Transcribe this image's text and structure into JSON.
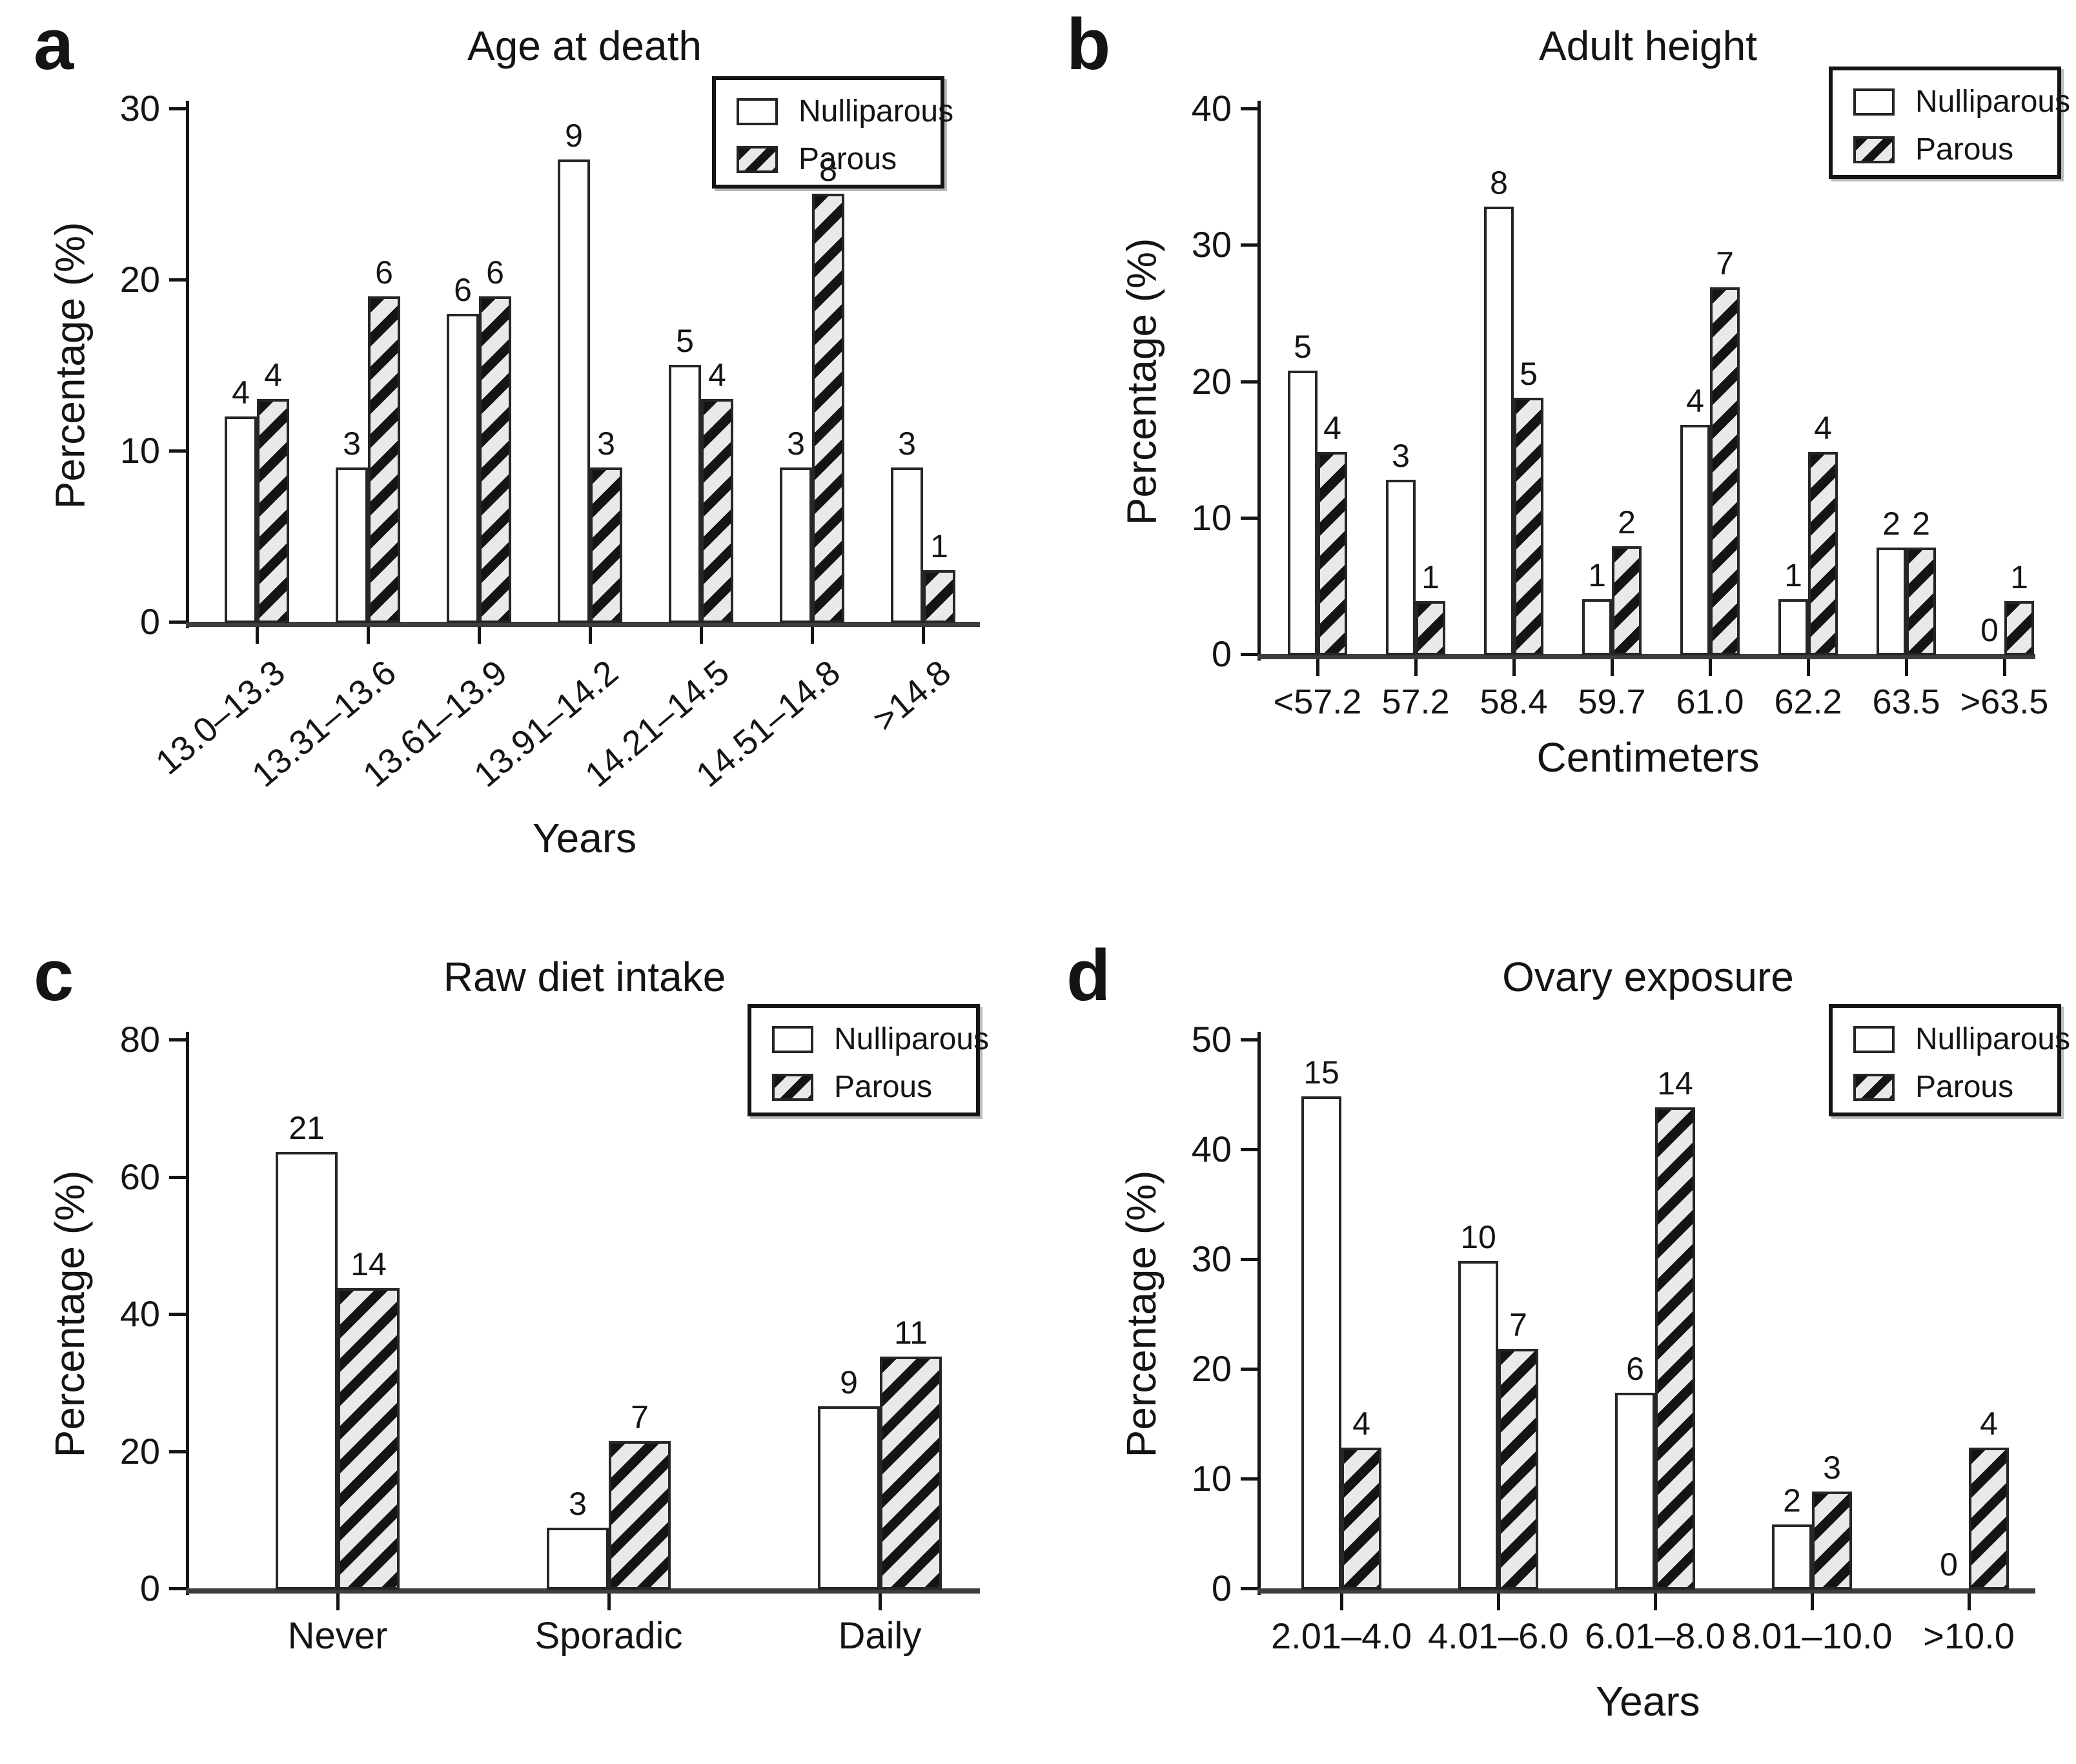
{
  "figure_background": "#ffffff",
  "colors": {
    "text": "#141414",
    "axis_line": "#141414",
    "baseline": "#3d3d3d",
    "open_bar_fill": "#ffffff",
    "hatched_bar_fill": "#e9e9e9",
    "hatch_stripe": "#141414",
    "bar_border": "#262626"
  },
  "legend": {
    "items": [
      {
        "label": "Nulliparous",
        "swatch": "open-white-square"
      },
      {
        "label": "Parous",
        "swatch": "black-diagonal-hatched-square"
      }
    ]
  },
  "chart_data": [
    {
      "panel": "a",
      "letter": "a",
      "type": "bar",
      "title": "Age at death",
      "xlabel": "Years",
      "ylabel": "Percentage (%)",
      "ylim": [
        0,
        30
      ],
      "yticks": [
        0,
        10,
        20,
        30
      ],
      "grid": false,
      "legend_position": "top-right",
      "x_tick_rotation_deg": -40,
      "categories": [
        "13.0–13.3",
        "13.31–13.6",
        "13.61–13.9",
        "13.91–14.2",
        "14.21–14.5",
        "14.51–14.8",
        ">14.8"
      ],
      "series": [
        {
          "name": "Nulliparous",
          "style": "open",
          "values": [
            12,
            9,
            18,
            27,
            15,
            9,
            9
          ],
          "counts": [
            4,
            3,
            6,
            9,
            5,
            3,
            3
          ]
        },
        {
          "name": "Parous",
          "style": "hatched",
          "values": [
            13,
            19,
            19,
            9,
            13,
            25,
            3
          ],
          "counts": [
            4,
            6,
            6,
            3,
            4,
            8,
            1
          ]
        }
      ]
    },
    {
      "panel": "b",
      "letter": "b",
      "type": "bar",
      "title": "Adult height",
      "xlabel": "Centimeters",
      "ylabel": "Percentage (%)",
      "ylim": [
        0,
        40
      ],
      "yticks": [
        0,
        10,
        20,
        30,
        40
      ],
      "grid": false,
      "legend_position": "top-right",
      "x_tick_rotation_deg": 0,
      "categories": [
        "<57.2",
        "57.2",
        "58.4",
        "59.7",
        "61.0",
        "62.2",
        "63.5",
        ">63.5"
      ],
      "series": [
        {
          "name": "Nulliparous",
          "style": "open",
          "values": [
            20.8,
            12.8,
            32.8,
            4,
            16.8,
            4,
            7.8,
            0
          ],
          "counts": [
            5,
            3,
            8,
            1,
            4,
            1,
            2,
            0
          ]
        },
        {
          "name": "Parous",
          "style": "hatched",
          "values": [
            14.8,
            3.9,
            18.8,
            7.9,
            26.9,
            14.8,
            7.8,
            3.9
          ],
          "counts": [
            4,
            1,
            5,
            2,
            7,
            4,
            2,
            1
          ]
        }
      ]
    },
    {
      "panel": "c",
      "letter": "c",
      "type": "bar",
      "title": "Raw diet intake",
      "xlabel": null,
      "ylabel": "Percentage (%)",
      "ylim": [
        0,
        80
      ],
      "yticks": [
        0,
        20,
        40,
        60,
        80
      ],
      "grid": false,
      "legend_position": "top-right",
      "x_tick_rotation_deg": 0,
      "categories": [
        "Never",
        "Sporadic",
        "Daily"
      ],
      "series": [
        {
          "name": "Nulliparous",
          "style": "open",
          "values": [
            63.6,
            8.8,
            26.5
          ],
          "counts": [
            21,
            3,
            9
          ]
        },
        {
          "name": "Parous",
          "style": "hatched",
          "values": [
            43.8,
            21.5,
            33.8
          ],
          "counts": [
            14,
            7,
            11
          ]
        }
      ]
    },
    {
      "panel": "d",
      "letter": "d",
      "type": "bar",
      "title": "Ovary exposure",
      "xlabel": "Years",
      "ylabel": "Percentage (%)",
      "ylim": [
        0,
        50
      ],
      "yticks": [
        0,
        10,
        20,
        30,
        40,
        50
      ],
      "grid": false,
      "legend_position": "top-right",
      "x_tick_rotation_deg": 0,
      "categories": [
        "2.01–4.0",
        "4.01–6.0",
        "6.01–8.0",
        "8.01–10.0",
        ">10.0"
      ],
      "series": [
        {
          "name": "Nulliparous",
          "style": "open",
          "values": [
            44.8,
            29.8,
            17.8,
            5.8,
            0
          ],
          "counts": [
            15,
            10,
            6,
            2,
            0
          ]
        },
        {
          "name": "Parous",
          "style": "hatched",
          "values": [
            12.8,
            21.8,
            43.8,
            8.8,
            12.8
          ],
          "counts": [
            4,
            7,
            14,
            3,
            4
          ]
        }
      ]
    }
  ]
}
